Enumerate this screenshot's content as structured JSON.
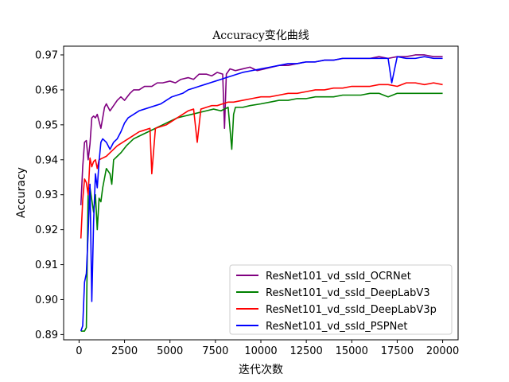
{
  "chart_data": {
    "type": "line",
    "title": "Accuracy变化曲线",
    "xlabel": "迭代次数",
    "ylabel": "Accuracy",
    "xlim": [
      -850,
      20850
    ],
    "ylim": [
      0.8885,
      0.9725
    ],
    "xticks": [
      0,
      2500,
      5000,
      7500,
      10000,
      12500,
      15000,
      17500,
      20000
    ],
    "yticks": [
      0.89,
      0.9,
      0.91,
      0.92,
      0.93,
      0.94,
      0.95,
      0.96,
      0.97
    ],
    "legend_position": "lower-right",
    "grid": false,
    "series": [
      {
        "name": "ResNet101_vd_ssld_OCRNet",
        "color": "#800080",
        "x": [
          100,
          200,
          300,
          400,
          500,
          600,
          700,
          800,
          900,
          1000,
          1200,
          1400,
          1500,
          1700,
          1900,
          2100,
          2300,
          2500,
          2800,
          3000,
          3300,
          3600,
          4000,
          4300,
          4600,
          5000,
          5300,
          5600,
          6000,
          6300,
          6600,
          7000,
          7300,
          7600,
          7900,
          8000,
          8100,
          8300,
          8600,
          9000,
          9400,
          9800,
          10200,
          10600,
          11000,
          11500,
          12000,
          12500,
          13000,
          13500,
          14000,
          14500,
          15000,
          15500,
          16000,
          16500,
          17000,
          17500,
          18000,
          18500,
          19000,
          19500,
          20000
        ],
        "values": [
          0.927,
          0.938,
          0.945,
          0.9455,
          0.94,
          0.9445,
          0.952,
          0.9525,
          0.952,
          0.953,
          0.949,
          0.955,
          0.956,
          0.954,
          0.9555,
          0.957,
          0.958,
          0.957,
          0.959,
          0.96,
          0.96,
          0.961,
          0.961,
          0.962,
          0.962,
          0.9625,
          0.962,
          0.963,
          0.9635,
          0.963,
          0.9645,
          0.9645,
          0.964,
          0.965,
          0.9645,
          0.949,
          0.9645,
          0.966,
          0.9655,
          0.966,
          0.9665,
          0.9655,
          0.966,
          0.9665,
          0.967,
          0.967,
          0.9675,
          0.968,
          0.968,
          0.9685,
          0.9685,
          0.969,
          0.969,
          0.969,
          0.969,
          0.9695,
          0.969,
          0.9695,
          0.9695,
          0.97,
          0.97,
          0.9695,
          0.9695
        ]
      },
      {
        "name": "ResNet101_vd_ssld_DeepLabV3",
        "color": "#008000",
        "x": [
          100,
          300,
          400,
          500,
          600,
          800,
          900,
          1000,
          1100,
          1200,
          1300,
          1500,
          1700,
          1800,
          1900,
          2100,
          2300,
          2600,
          3000,
          3400,
          3800,
          4200,
          4600,
          5000,
          5400,
          5800,
          6200,
          6600,
          7000,
          7400,
          7800,
          8200,
          8400,
          8500,
          8600,
          9000,
          9400,
          10000,
          10500,
          11000,
          11500,
          12000,
          12500,
          13000,
          13500,
          14000,
          14500,
          15000,
          15500,
          16000,
          16500,
          17000,
          17500,
          18000,
          18500,
          19000,
          19500,
          20000
        ],
        "values": [
          0.891,
          0.891,
          0.892,
          0.9315,
          0.932,
          0.925,
          0.93,
          0.92,
          0.929,
          0.928,
          0.932,
          0.9375,
          0.936,
          0.933,
          0.94,
          0.941,
          0.942,
          0.944,
          0.946,
          0.947,
          0.948,
          0.949,
          0.95,
          0.951,
          0.952,
          0.9525,
          0.953,
          0.9535,
          0.954,
          0.9545,
          0.954,
          0.955,
          0.943,
          0.953,
          0.955,
          0.955,
          0.9555,
          0.956,
          0.9565,
          0.957,
          0.957,
          0.9575,
          0.9575,
          0.958,
          0.958,
          0.958,
          0.9585,
          0.9585,
          0.9585,
          0.959,
          0.959,
          0.958,
          0.959,
          0.959,
          0.959,
          0.959,
          0.959,
          0.959
        ]
      },
      {
        "name": "ResNet101_vd_ssld_DeepLabV3p",
        "color": "#ff0000",
        "x": [
          100,
          200,
          300,
          400,
          500,
          600,
          700,
          800,
          900,
          1000,
          1100,
          1300,
          1500,
          1700,
          1900,
          2100,
          2400,
          2700,
          3000,
          3300,
          3600,
          3900,
          4000,
          4200,
          4500,
          4800,
          5100,
          5400,
          5700,
          6000,
          6300,
          6500,
          6700,
          7000,
          7300,
          7600,
          7900,
          8200,
          8500,
          9000,
          9500,
          10000,
          10500,
          11000,
          11500,
          12000,
          12500,
          13000,
          13500,
          14000,
          14500,
          15000,
          15500,
          16000,
          16500,
          17000,
          17500,
          18000,
          18500,
          19000,
          19500,
          20000
        ],
        "values": [
          0.9175,
          0.9285,
          0.9345,
          0.9335,
          0.93,
          0.9405,
          0.938,
          0.9395,
          0.94,
          0.9375,
          0.94,
          0.9405,
          0.941,
          0.942,
          0.943,
          0.944,
          0.945,
          0.946,
          0.947,
          0.948,
          0.9485,
          0.949,
          0.936,
          0.949,
          0.9495,
          0.95,
          0.951,
          0.952,
          0.953,
          0.954,
          0.9545,
          0.945,
          0.9545,
          0.955,
          0.9555,
          0.9555,
          0.956,
          0.9565,
          0.9565,
          0.957,
          0.9575,
          0.958,
          0.958,
          0.9585,
          0.959,
          0.959,
          0.9595,
          0.96,
          0.96,
          0.9605,
          0.9605,
          0.961,
          0.961,
          0.961,
          0.9615,
          0.9615,
          0.961,
          0.962,
          0.962,
          0.9615,
          0.962,
          0.9615
        ]
      },
      {
        "name": "ResNet101_vd_ssld_PSPNet",
        "color": "#0000ff",
        "x": [
          100,
          200,
          300,
          400,
          500,
          600,
          700,
          800,
          900,
          1000,
          1100,
          1200,
          1300,
          1500,
          1700,
          1900,
          2100,
          2300,
          2500,
          2700,
          3000,
          3300,
          3600,
          3900,
          4200,
          4500,
          4800,
          5100,
          5400,
          5700,
          6000,
          6300,
          6600,
          6900,
          7200,
          7500,
          7800,
          8100,
          8400,
          8700,
          9000,
          9500,
          10000,
          10500,
          11000,
          11500,
          12000,
          12500,
          13000,
          13500,
          14000,
          14500,
          15000,
          15500,
          16000,
          16500,
          17000,
          17200,
          17500,
          18000,
          18500,
          19000,
          19500,
          20000
        ],
        "values": [
          0.891,
          0.8925,
          0.905,
          0.9075,
          0.919,
          0.933,
          0.8995,
          0.9225,
          0.936,
          0.932,
          0.9395,
          0.945,
          0.946,
          0.945,
          0.943,
          0.945,
          0.946,
          0.948,
          0.9505,
          0.952,
          0.953,
          0.954,
          0.9545,
          0.955,
          0.9555,
          0.956,
          0.957,
          0.958,
          0.9585,
          0.959,
          0.96,
          0.9605,
          0.961,
          0.9615,
          0.962,
          0.9625,
          0.963,
          0.9635,
          0.964,
          0.9645,
          0.965,
          0.9655,
          0.966,
          0.9665,
          0.967,
          0.9675,
          0.9675,
          0.968,
          0.968,
          0.9685,
          0.9685,
          0.969,
          0.969,
          0.969,
          0.969,
          0.969,
          0.969,
          0.962,
          0.9695,
          0.969,
          0.969,
          0.9695,
          0.969,
          0.969
        ]
      }
    ]
  }
}
